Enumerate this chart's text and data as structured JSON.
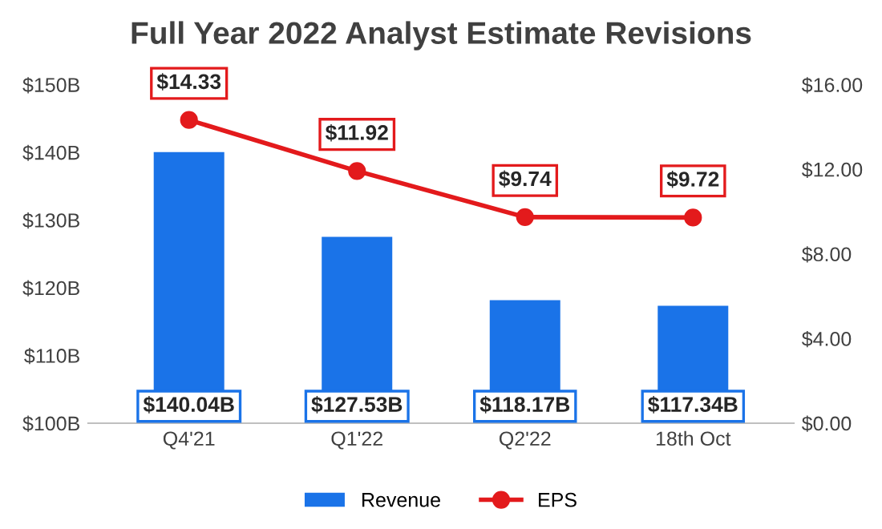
{
  "chart_data": {
    "type": "bar",
    "title": "Full Year 2022 Analyst Estimate Revisions",
    "categories": [
      "Q4'21",
      "Q1'22",
      "Q2'22",
      "18th Oct"
    ],
    "series": [
      {
        "name": "Revenue",
        "color": "#1a73e8",
        "values": [
          140.04,
          127.53,
          118.17,
          117.34
        ],
        "value_labels": [
          "$140.04B",
          "$127.53B",
          "$118.17B",
          "$117.34B"
        ]
      },
      {
        "name": "EPS",
        "type": "line",
        "axis": "y2",
        "color": "#e31a1c",
        "marker": "circle",
        "values": [
          14.33,
          11.92,
          9.74,
          9.72
        ],
        "value_labels": [
          "$14.33",
          "$11.92",
          "$9.74",
          "$9.72"
        ]
      }
    ],
    "ylim": [
      100,
      150
    ],
    "yticks": [
      {
        "value": 100,
        "label": "$100B"
      },
      {
        "value": 110,
        "label": "$110B"
      },
      {
        "value": 120,
        "label": "$120B"
      },
      {
        "value": 130,
        "label": "$130B"
      },
      {
        "value": 140,
        "label": "$140B"
      },
      {
        "value": 150,
        "label": "$150B"
      }
    ],
    "y2lim": [
      0,
      16
    ],
    "y2ticks": [
      {
        "value": 0,
        "label": "$0.00"
      },
      {
        "value": 4,
        "label": "$4.00"
      },
      {
        "value": 8,
        "label": "$8.00"
      },
      {
        "value": 12,
        "label": "$12.00"
      },
      {
        "value": 16,
        "label": "$16.00"
      }
    ],
    "grid": false,
    "legend": "bottom"
  }
}
